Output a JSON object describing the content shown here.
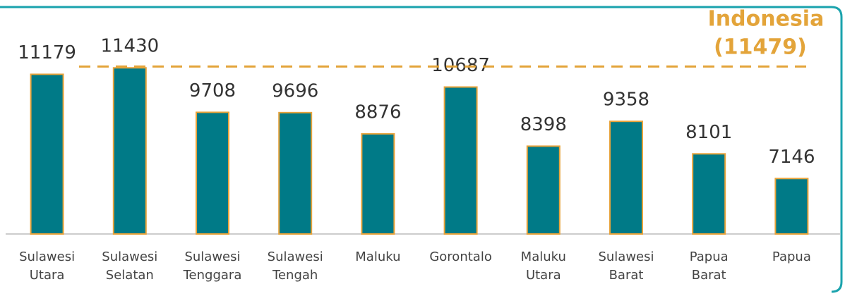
{
  "chart_data": {
    "type": "bar",
    "categories": [
      "Sulawesi Utara",
      "Sulawesi Selatan",
      "Sulawesi Tenggara",
      "Sulawesi Tengah",
      "Maluku",
      "Gorontalo",
      "Maluku Utara",
      "Sulawesi Barat",
      "Papua Barat",
      "Papua"
    ],
    "values": [
      11179,
      11430,
      9708,
      9696,
      8876,
      10687,
      8398,
      9358,
      8101,
      7146
    ],
    "color": "#007a87",
    "edge_color": "#e8a33a",
    "ylim": [
      5000,
      14000
    ],
    "reference": {
      "label": "Indonesia",
      "value": 11479,
      "value_label": "(11479)",
      "color": "#e3a43a"
    }
  }
}
